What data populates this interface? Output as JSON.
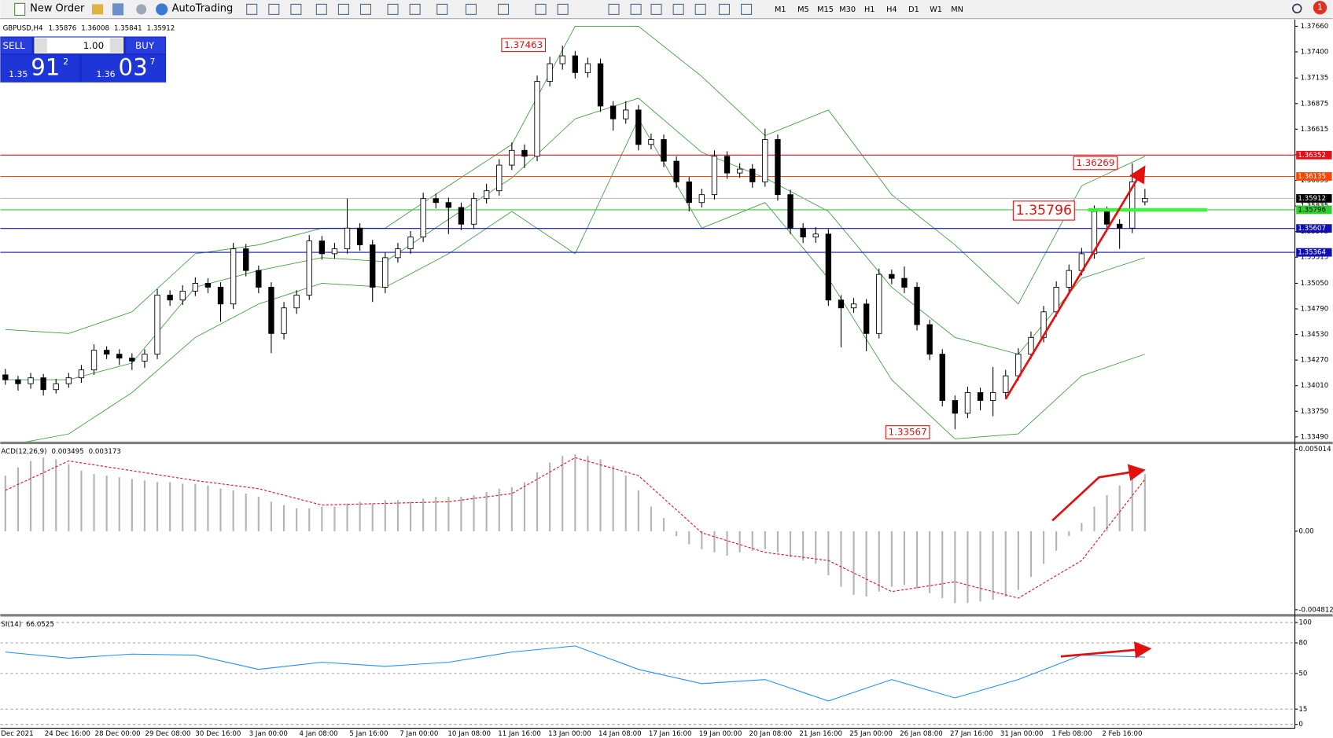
{
  "toolbar": {
    "new_order": "New Order",
    "auto_trading": "AutoTrading",
    "timeframes": [
      "M1",
      "M5",
      "M15",
      "M30",
      "H1",
      "H4",
      "D1",
      "W1",
      "MN"
    ],
    "notifications": "1"
  },
  "trade_panel": {
    "sell": "SELL",
    "buy": "BUY",
    "lot": "1.00",
    "sell_price": [
      "1.35",
      "91",
      "2"
    ],
    "buy_price": [
      "1.36",
      "03",
      "7"
    ]
  },
  "chart_data": [
    {
      "type": "candlestick",
      "title": "GBPUSD,H4",
      "candles": [
        [
          1.3412,
          1.3418,
          1.3402,
          1.3407
        ],
        [
          1.3407,
          1.3411,
          1.3396,
          1.3403
        ],
        [
          1.3403,
          1.3414,
          1.3398,
          1.3409
        ],
        [
          1.3409,
          1.3413,
          1.3391,
          1.3397
        ],
        [
          1.3397,
          1.3408,
          1.3393,
          1.3403
        ],
        [
          1.3403,
          1.3414,
          1.3399,
          1.3409
        ],
        [
          1.3409,
          1.3422,
          1.3404,
          1.3417
        ],
        [
          1.3417,
          1.3443,
          1.3412,
          1.3437
        ],
        [
          1.3437,
          1.3441,
          1.3428,
          1.3433
        ],
        [
          1.3433,
          1.3438,
          1.3422,
          1.3429
        ],
        [
          1.3429,
          1.3434,
          1.3417,
          1.3426
        ],
        [
          1.3426,
          1.3438,
          1.3419,
          1.3433
        ],
        [
          1.3433,
          1.3499,
          1.3428,
          1.3493
        ],
        [
          1.3493,
          1.3498,
          1.3482,
          1.3488
        ],
        [
          1.3488,
          1.3503,
          1.3483,
          1.3497
        ],
        [
          1.3497,
          1.3511,
          1.3492,
          1.3505
        ],
        [
          1.3505,
          1.351,
          1.3495,
          1.3501
        ],
        [
          1.3501,
          1.3506,
          1.3466,
          1.3484
        ],
        [
          1.3484,
          1.3546,
          1.3479,
          1.354
        ],
        [
          1.354,
          1.3545,
          1.3512,
          1.3518
        ],
        [
          1.3518,
          1.3523,
          1.3495,
          1.3501
        ],
        [
          1.3501,
          1.3506,
          1.3434,
          1.3454
        ],
        [
          1.3454,
          1.3486,
          1.3448,
          1.348
        ],
        [
          1.348,
          1.3498,
          1.3474,
          1.3493
        ],
        [
          1.3493,
          1.3554,
          1.3488,
          1.3548
        ],
        [
          1.3548,
          1.3553,
          1.3529,
          1.3535
        ],
        [
          1.3535,
          1.3546,
          1.353,
          1.354
        ],
        [
          1.354,
          1.3591,
          1.3535,
          1.3561
        ],
        [
          1.3561,
          1.3566,
          1.3538,
          1.3544
        ],
        [
          1.3544,
          1.3549,
          1.3486,
          1.3501
        ],
        [
          1.3501,
          1.3536,
          1.3495,
          1.3531
        ],
        [
          1.3531,
          1.3546,
          1.3526,
          1.354
        ],
        [
          1.354,
          1.3558,
          1.3535,
          1.3552
        ],
        [
          1.3552,
          1.3597,
          1.3547,
          1.3591
        ],
        [
          1.3591,
          1.3596,
          1.3581,
          1.3587
        ],
        [
          1.3587,
          1.3592,
          1.3555,
          1.3582
        ],
        [
          1.3582,
          1.3587,
          1.3559,
          1.3565
        ],
        [
          1.3565,
          1.3597,
          1.356,
          1.3591
        ],
        [
          1.3591,
          1.3606,
          1.3586,
          1.3599
        ],
        [
          1.3599,
          1.3631,
          1.3594,
          1.3625
        ],
        [
          1.3625,
          1.3648,
          1.362,
          1.364
        ],
        [
          1.364,
          1.3646,
          1.3622,
          1.3634
        ],
        [
          1.3634,
          1.3716,
          1.3629,
          1.371
        ],
        [
          1.371,
          1.3735,
          1.3705,
          1.3728
        ],
        [
          1.3728,
          1.37463,
          1.3722,
          1.3736
        ],
        [
          1.3736,
          1.3741,
          1.3713,
          1.3719
        ],
        [
          1.3719,
          1.3734,
          1.3714,
          1.3728
        ],
        [
          1.3728,
          1.3733,
          1.3679,
          1.3685
        ],
        [
          1.3685,
          1.369,
          1.366,
          1.3672
        ],
        [
          1.3672,
          1.369,
          1.3667,
          1.3681
        ],
        [
          1.3681,
          1.3686,
          1.364,
          1.3646
        ],
        [
          1.3646,
          1.3657,
          1.3641,
          1.3651
        ],
        [
          1.3651,
          1.3656,
          1.3623,
          1.3629
        ],
        [
          1.3629,
          1.3634,
          1.3602,
          1.3608
        ],
        [
          1.3608,
          1.3613,
          1.3578,
          1.3587
        ],
        [
          1.3587,
          1.3601,
          1.3582,
          1.3595
        ],
        [
          1.3595,
          1.364,
          1.359,
          1.3634
        ],
        [
          1.3634,
          1.3639,
          1.3611,
          1.3617
        ],
        [
          1.3617,
          1.3627,
          1.3612,
          1.3621
        ],
        [
          1.3621,
          1.3626,
          1.3602,
          1.3608
        ],
        [
          1.3608,
          1.3662,
          1.3603,
          1.3651
        ],
        [
          1.3651,
          1.3656,
          1.3589,
          1.3595
        ],
        [
          1.3595,
          1.36,
          1.3555,
          1.3561
        ],
        [
          1.3561,
          1.3566,
          1.3546,
          1.3552
        ],
        [
          1.3552,
          1.3562,
          1.3546,
          1.3555
        ],
        [
          1.3555,
          1.356,
          1.3482,
          1.3488
        ],
        [
          1.3488,
          1.3493,
          1.344,
          1.348
        ],
        [
          1.348,
          1.349,
          1.3475,
          1.3484
        ],
        [
          1.3484,
          1.3489,
          1.3436,
          1.3454
        ],
        [
          1.3454,
          1.352,
          1.3449,
          1.3514
        ],
        [
          1.3514,
          1.3519,
          1.3504,
          1.351
        ],
        [
          1.351,
          1.3522,
          1.3495,
          1.3501
        ],
        [
          1.3501,
          1.3506,
          1.3457,
          1.3463
        ],
        [
          1.3463,
          1.3468,
          1.3427,
          1.3433
        ],
        [
          1.3433,
          1.3438,
          1.338,
          1.3386
        ],
        [
          1.3386,
          1.3391,
          1.33567,
          1.3373
        ],
        [
          1.3373,
          1.34,
          1.3368,
          1.3394
        ],
        [
          1.3394,
          1.3399,
          1.3376,
          1.3386
        ],
        [
          1.3386,
          1.342,
          1.337,
          1.3394
        ],
        [
          1.3394,
          1.3417,
          1.3389,
          1.3411
        ],
        [
          1.3411,
          1.3439,
          1.3406,
          1.3433
        ],
        [
          1.3433,
          1.3456,
          1.3428,
          1.345
        ],
        [
          1.345,
          1.3482,
          1.3445,
          1.3476
        ],
        [
          1.3476,
          1.3507,
          1.3471,
          1.3501
        ],
        [
          1.3501,
          1.3524,
          1.3496,
          1.3518
        ],
        [
          1.3518,
          1.3541,
          1.3513,
          1.3535
        ],
        [
          1.3535,
          1.3584,
          1.353,
          1.3578
        ],
        [
          1.3578,
          1.3583,
          1.3559,
          1.3565
        ],
        [
          1.3565,
          1.357,
          1.354,
          1.3561
        ],
        [
          1.3561,
          1.36269,
          1.3556,
          1.3608
        ],
        [
          1.35876,
          1.36008,
          1.35841,
          1.35912
        ]
      ],
      "bands": {
        "color": "#3c9e3c",
        "x": [
          0,
          5,
          10,
          15,
          20,
          25,
          30,
          35,
          40,
          45,
          50,
          55,
          60,
          65,
          70,
          75,
          80,
          85,
          90
        ],
        "upper": [
          1.3458,
          1.3454,
          1.3476,
          1.3535,
          1.3544,
          1.3561,
          1.3561,
          1.3604,
          1.3646,
          1.3766,
          1.3766,
          1.3715,
          1.3655,
          1.3681,
          1.3595,
          1.3544,
          1.3484,
          1.3604,
          1.3634
        ],
        "middle": [
          1.3407,
          1.3407,
          1.3424,
          1.3501,
          1.3518,
          1.3531,
          1.3527,
          1.357,
          1.3612,
          1.3672,
          1.3693,
          1.3638,
          1.3612,
          1.3578,
          1.3501,
          1.345,
          1.3433,
          1.351,
          1.3531
        ],
        "lower": [
          1.334,
          1.3352,
          1.3394,
          1.345,
          1.3484,
          1.3505,
          1.3501,
          1.3535,
          1.3578,
          1.3535,
          1.3672,
          1.3561,
          1.3587,
          1.351,
          1.3407,
          1.3347,
          1.3352,
          1.3411,
          1.3433
        ]
      },
      "ylim": [
        1.33442,
        1.3772
      ],
      "yticks": [
        {
          "value": 1.3766,
          "label": "1.37660"
        },
        {
          "value": 1.374,
          "label": "1.37400"
        },
        1.37135,
        1.36875,
        1.36615,
        1.36355,
        1.36095,
        1.35835,
        1.35575,
        1.35315,
        {
          "value": 1.3505,
          "label": "1.35050"
        },
        {
          "value": 1.3479,
          "label": "1.34790"
        },
        {
          "value": 1.3453,
          "label": "1.34530"
        },
        {
          "value": 1.3427,
          "label": "1.34270"
        },
        {
          "value": 1.3401,
          "label": "1.34010"
        },
        {
          "value": 1.3375,
          "label": "1.33750"
        },
        {
          "value": 1.3349,
          "label": "1.33490"
        }
      ],
      "levels": [
        {
          "value": 1.36352,
          "color": "#e3101a"
        },
        {
          "value": 1.36135,
          "color": "#ff4500"
        },
        {
          "value": 1.35912,
          "color": "#c0c0c0"
        },
        {
          "value": 1.35796,
          "color": "#32cd32"
        },
        {
          "value": 1.35607,
          "color": "#1010b0"
        },
        {
          "value": 1.35364,
          "color": "#1010b0"
        }
      ],
      "annotations": [
        1.37463,
        1.33567,
        1.36269,
        1.35796
      ],
      "x_labels": [
        "Dec 2021",
        "24 Dec 16:00",
        "28 Dec 00:00",
        "29 Dec 08:00",
        "30 Dec 16:00",
        "3 Jan 00:00",
        "4 Jan 08:00",
        "5 Jan 16:00",
        "7 Jan 00:00",
        "10 Jan 08:00",
        "11 Jan 16:00",
        "13 Jan 00:00",
        "14 Jan 08:00",
        "17 Jan 16:00",
        "19 Jan 00:00",
        "20 Jan 08:00",
        "21 Jan 16:00",
        "25 Jan 00:00",
        "26 Jan 08:00",
        "27 Jan 16:00",
        "31 Jan 00:00",
        "1 Feb 08:00",
        "2 Feb 16:00"
      ]
    },
    {
      "type": "macd",
      "title": "ACD(12,26,9)",
      "histogram": [
        0.0034,
        0.0039,
        0.0043,
        0.0045,
        0.0044,
        0.0041,
        0.0037,
        0.0035,
        0.0034,
        0.0033,
        0.0032,
        0.0031,
        0.003,
        0.003,
        0.0029,
        0.0029,
        0.0028,
        0.0026,
        0.0025,
        0.0023,
        0.0021,
        0.0018,
        0.0016,
        0.0014,
        0.0014,
        0.0015,
        0.0015,
        0.0017,
        0.0018,
        0.0017,
        0.0019,
        0.0019,
        0.0018,
        0.002,
        0.0021,
        0.0021,
        0.0021,
        0.0022,
        0.0024,
        0.0026,
        0.0027,
        0.003,
        0.0036,
        0.0042,
        0.0046,
        0.0047,
        0.0046,
        0.0044,
        0.004,
        0.0034,
        0.0025,
        0.0015,
        0.0008,
        -0.0003,
        -0.0008,
        -0.0011,
        -0.0013,
        -0.0015,
        -0.0013,
        -0.0012,
        -0.0011,
        -0.0013,
        -0.0016,
        -0.0018,
        -0.002,
        -0.0027,
        -0.0034,
        -0.0039,
        -0.004,
        -0.0037,
        -0.0034,
        -0.0033,
        -0.0035,
        -0.0038,
        -0.0041,
        -0.0044,
        -0.0044,
        -0.0043,
        -0.0042,
        -0.004,
        -0.0036,
        -0.0028,
        -0.002,
        -0.0012,
        -0.0003,
        0.0005,
        0.0015,
        0.0022,
        0.0028,
        0.0033,
        0.003495
      ],
      "histogram_color": "#b4b4b4",
      "x": [
        0,
        5,
        10,
        15,
        20,
        25,
        30,
        35,
        40,
        45,
        50,
        55,
        60,
        65,
        70,
        75,
        80,
        85,
        90
      ],
      "signal": [
        0.0025,
        0.0043,
        0.0037,
        0.0031,
        0.0026,
        0.0016,
        0.0017,
        0.0018,
        0.0023,
        0.0045,
        0.0034,
        -0.0001,
        -0.0013,
        -0.0018,
        -0.0037,
        -0.0031,
        -0.0041,
        -0.0018,
        0.003173
      ],
      "signal_color": "#e3101a",
      "ylim": [
        -0.004812,
        0.005014
      ],
      "yticks": [
        0.005014,
        {
          "value": 0,
          "label": "0.00"
        },
        -0.004812
      ]
    },
    {
      "type": "rsi",
      "title": "SI(14)",
      "x": [
        0,
        5,
        10,
        15,
        20,
        25,
        30,
        35,
        40,
        45,
        50,
        55,
        60,
        65,
        70,
        75,
        80,
        85,
        90
      ],
      "values": [
        71,
        65,
        69,
        68,
        54,
        61,
        57,
        61,
        71,
        77,
        54,
        40,
        44,
        23,
        44,
        26,
        44,
        68,
        66.0525
      ],
      "color": "#1e90ff",
      "ylim": [
        0,
        100
      ],
      "yticks": [
        100,
        80,
        50,
        15,
        0
      ]
    }
  ]
}
